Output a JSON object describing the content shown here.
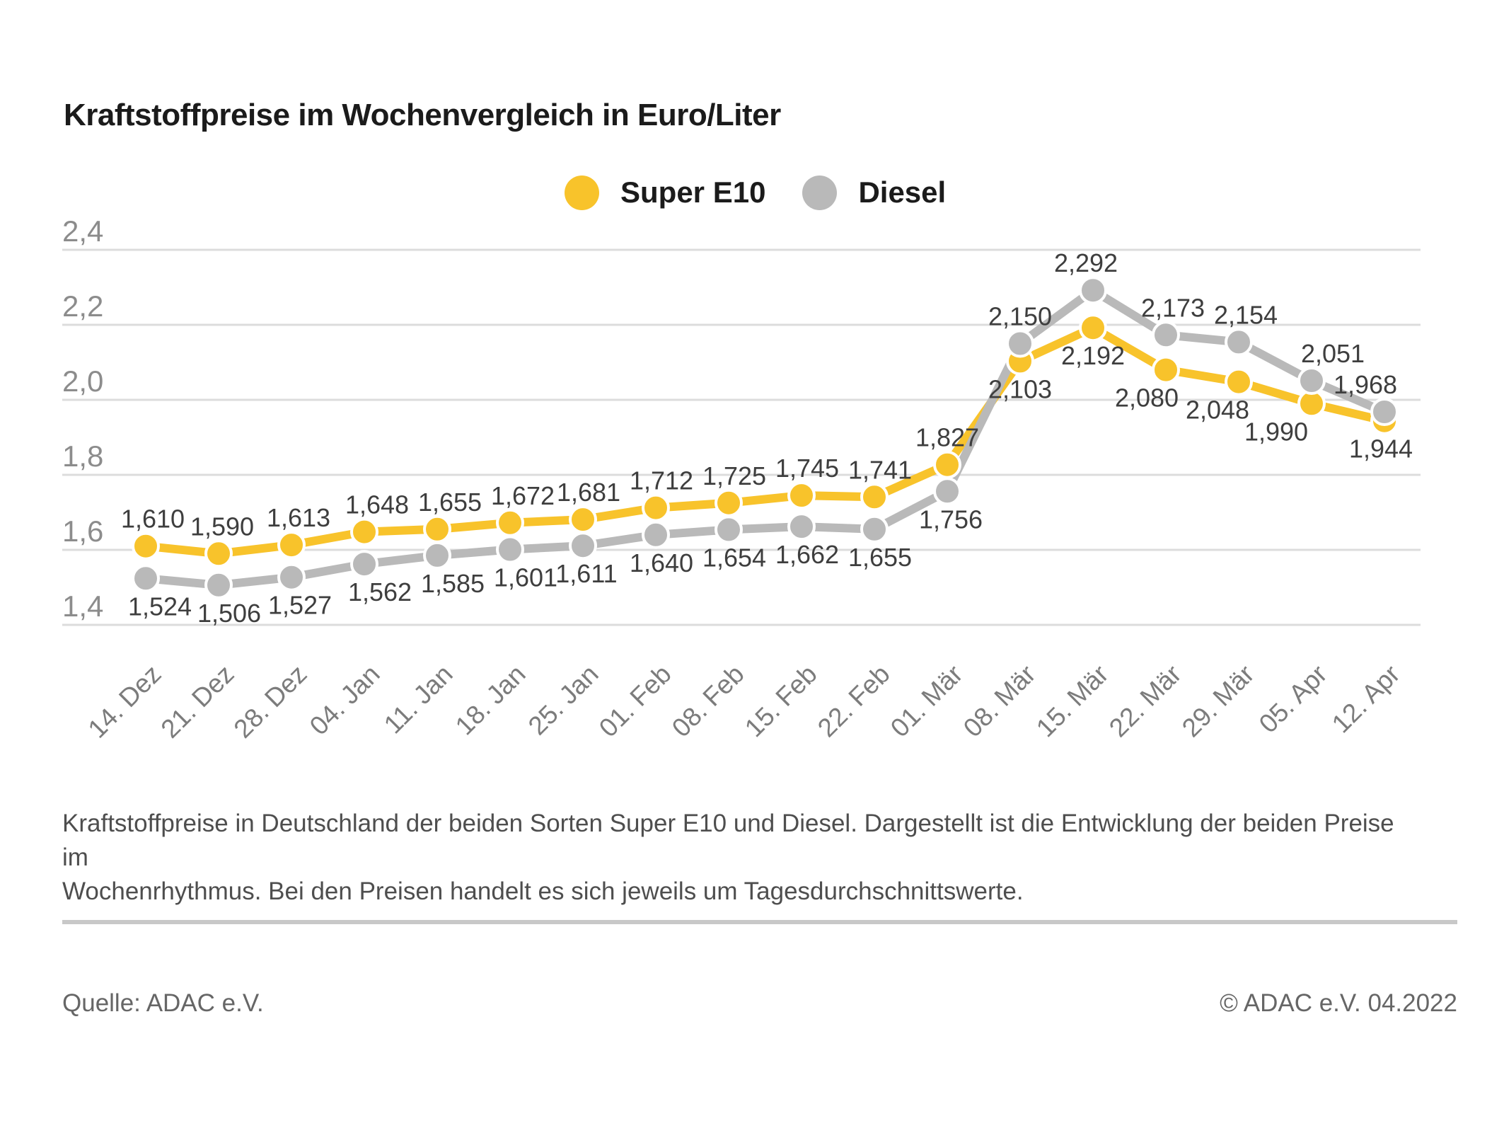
{
  "title": "Kraftstoffpreise im Wochenvergleich in Euro/Liter",
  "legend": [
    {
      "label": "Super E10",
      "color": "#F8C32B"
    },
    {
      "label": "Diesel",
      "color": "#B9B9B9"
    }
  ],
  "chart_data": {
    "type": "line",
    "title": "Kraftstoffpreise im Wochenvergleich in Euro/Liter",
    "unit": "Euro/Liter",
    "categories": [
      "14. Dez",
      "21. Dez",
      "28. Dez",
      "04. Jan",
      "11. Jan",
      "18. Jan",
      "25. Jan",
      "01. Feb",
      "08. Feb",
      "15. Feb",
      "22. Feb",
      "01. Mär",
      "08. Mär",
      "15. Mär",
      "22. Mär",
      "29. Mär",
      "05. Apr",
      "12. Apr"
    ],
    "series": [
      {
        "name": "Super E10",
        "color": "#F8C32B",
        "values": [
          1.61,
          1.59,
          1.613,
          1.648,
          1.655,
          1.672,
          1.681,
          1.712,
          1.725,
          1.745,
          1.741,
          1.827,
          2.103,
          2.192,
          2.08,
          2.048,
          1.99,
          1.944
        ]
      },
      {
        "name": "Diesel",
        "color": "#B9B9B9",
        "values": [
          1.524,
          1.506,
          1.527,
          1.562,
          1.585,
          1.601,
          1.611,
          1.64,
          1.654,
          1.662,
          1.655,
          1.756,
          2.15,
          2.292,
          2.173,
          2.154,
          2.051,
          1.968
        ]
      }
    ],
    "ylim": [
      1.4,
      2.4
    ],
    "yticks": [
      2.4,
      2.2,
      2.0,
      1.8,
      1.6,
      1.4
    ],
    "grid": true,
    "legend_position": "top-center",
    "decimal_separator": ",",
    "value_decimals": 3,
    "colors": {
      "grid_line": "#dcdcdc",
      "axis_tick_text": "#8c8c8c",
      "x_tick_text": "#7c7c7c",
      "data_label_text": "#3e3e3e",
      "marker_halo": "#ffffff"
    }
  },
  "caption": {
    "lines": [
      "Kraftstoffpreise in Deutschland der beiden Sorten Super E10 und Diesel. Dargestellt ist die Entwicklung der beiden Preise im",
      "Wochenrhythmus. Bei den Preisen handelt es sich jeweils um Tagesdurchschnittswerte."
    ]
  },
  "footer": {
    "source_label": "Quelle: ADAC e.V.",
    "copyright_label": "© ADAC e.V. 04.2022"
  }
}
